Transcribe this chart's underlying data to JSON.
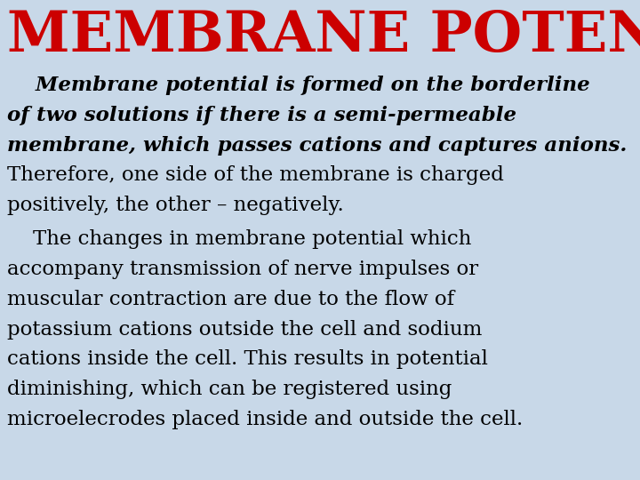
{
  "title": "MEMBRANE POTENTIAL",
  "title_color": "#cc0000",
  "background_color": "#c8d8e8",
  "text_color": "#000000",
  "title_fontsize": 46,
  "body_fontsize": 16.5,
  "italic_lines": [
    "    Membrane potential is formed on the borderline",
    "of two solutions if there is a semi-permeable",
    "membrane, which passes cations and captures anions."
  ],
  "normal_lines": [
    "Therefore, one side of the membrane is charged",
    "positively, the other – negatively."
  ],
  "para2_lines": [
    "    The changes in membrane potential which",
    "accompany transmission of nerve impulses or",
    "muscular contraction are due to the flow of",
    "potassium cations outside the cell and sodium",
    "cations inside the cell. This results in potential",
    "diminishing, which can be registered using",
    "microelecrodes placed inside and outside the cell."
  ]
}
